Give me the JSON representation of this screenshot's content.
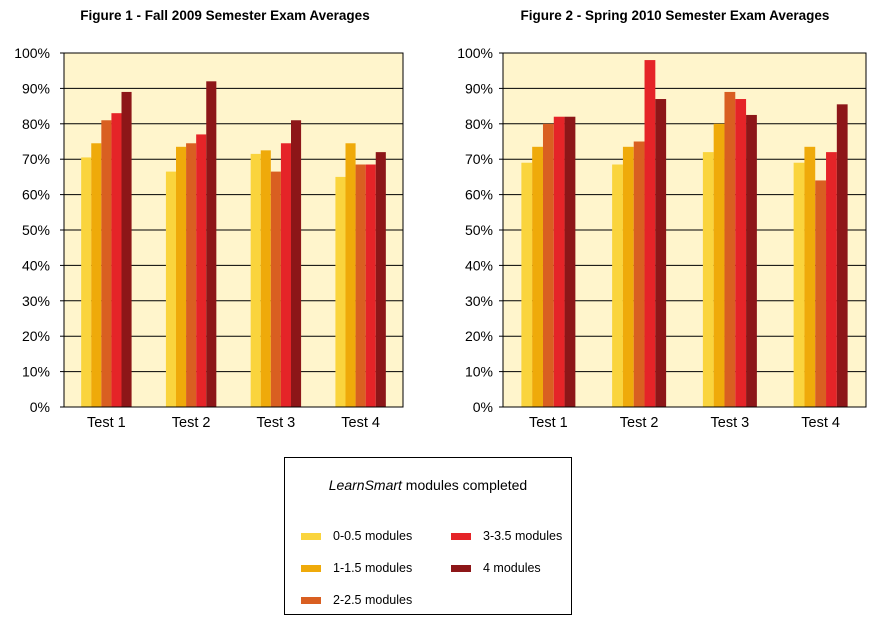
{
  "chart_data": [
    {
      "type": "bar",
      "title": "Figure 1 - Fall 2009 Semester Exam Averages",
      "categories": [
        "Test 1",
        "Test 2",
        "Test 3",
        "Test 4"
      ],
      "ylim": [
        0,
        100
      ],
      "yticks": [
        "0%",
        "10%",
        "20%",
        "30%",
        "40%",
        "50%",
        "60%",
        "70%",
        "80%",
        "90%",
        "100%"
      ],
      "grid": true,
      "series": [
        {
          "name": "0-0.5 modules",
          "values": [
            70.5,
            66.5,
            71.5,
            65
          ]
        },
        {
          "name": "1-1.5 modules",
          "values": [
            74.5,
            73.5,
            72.5,
            74.5
          ]
        },
        {
          "name": "2-2.5 modules",
          "values": [
            81,
            74.5,
            66.5,
            68.5
          ]
        },
        {
          "name": "3-3.5 modules",
          "values": [
            83,
            77,
            74.5,
            68.5
          ]
        },
        {
          "name": "4 modules",
          "values": [
            89,
            92,
            81,
            72
          ]
        }
      ]
    },
    {
      "type": "bar",
      "title": "Figure 2 - Spring 2010 Semester Exam Averages",
      "categories": [
        "Test 1",
        "Test 2",
        "Test 3",
        "Test 4"
      ],
      "ylim": [
        0,
        100
      ],
      "yticks": [
        "0%",
        "10%",
        "20%",
        "30%",
        "40%",
        "50%",
        "60%",
        "70%",
        "80%",
        "90%",
        "100%"
      ],
      "grid": true,
      "series": [
        {
          "name": "0-0.5 modules",
          "values": [
            69,
            68.5,
            72,
            69
          ]
        },
        {
          "name": "1-1.5 modules",
          "values": [
            73.5,
            73.5,
            80,
            73.5
          ]
        },
        {
          "name": "2-2.5 modules",
          "values": [
            80,
            75,
            89,
            64
          ]
        },
        {
          "name": "3-3.5 modules",
          "values": [
            82,
            98,
            87,
            72
          ]
        },
        {
          "name": "4 modules",
          "values": [
            82,
            87,
            82.5,
            85.5
          ]
        }
      ]
    }
  ],
  "legend": {
    "title_italic": "LearnSmart",
    "title_rest": " modules completed",
    "placement": "bottom-center"
  },
  "colors": {
    "series": [
      "#FAD43D",
      "#EFAA0A",
      "#D95F21",
      "#E52428",
      "#8D1618"
    ],
    "plot_bg": "#FFF5CC",
    "grid": "#000000"
  }
}
